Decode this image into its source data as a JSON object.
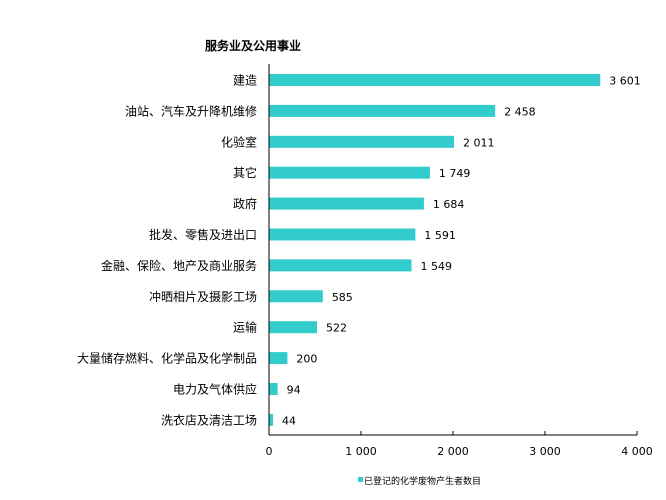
{
  "chart_data": {
    "type": "bar",
    "orientation": "horizontal",
    "title": "服务业及公用事业",
    "categories": [
      "建造",
      "油站、汽车及升降机维修",
      "化验室",
      "其它",
      "政府",
      "批发、零售及进出口",
      "金融、保险、地产及商业服务",
      "冲晒相片及摄影工场",
      "运输",
      "大量储存燃料、化学品及化学制品",
      "电力及气体供应",
      "洗衣店及清洁工场"
    ],
    "series": [
      {
        "name": "已登记的化学废物产生者数目",
        "values": [
          3601,
          2458,
          2011,
          1749,
          1684,
          1591,
          1549,
          585,
          522,
          200,
          94,
          44
        ],
        "color": "#33CCCC"
      }
    ],
    "data_labels": [
      "3 601",
      "2 458",
      "2 011",
      "1 749",
      "1 684",
      "1 591",
      "1 549",
      "585",
      "522",
      "200",
      "94",
      "44"
    ],
    "xlim": [
      0,
      4000
    ],
    "xticks": [
      0,
      1000,
      2000,
      3000,
      4000
    ],
    "xtick_labels": [
      "0",
      "1 000",
      "2 000",
      "3 000",
      "4 000"
    ],
    "grid": false,
    "legend_position": "bottom"
  }
}
